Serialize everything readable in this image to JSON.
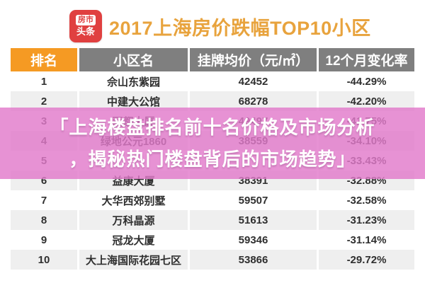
{
  "header": {
    "logo": {
      "line1": "房市",
      "line2": "头条"
    },
    "title": "2017上海房价跌幅TOP10小区"
  },
  "chart_data": {
    "type": "table",
    "title": "2017上海房价跌幅TOP10小区",
    "columns": [
      "排名",
      "小区名",
      "挂牌均价（元/㎡）",
      "12个月变化率"
    ],
    "rows": [
      {
        "rank": "1",
        "name": "佘山东紫园",
        "price": "42452",
        "change": "-44.29%"
      },
      {
        "rank": "2",
        "name": "中建大公馆",
        "price": "68278",
        "change": "-42.20%"
      },
      {
        "rank": "3",
        "name": "丽都大厦",
        "price": "49497",
        "change": "-41.75%"
      },
      {
        "rank": "4",
        "name": "绿地公元1860",
        "price": "38559",
        "change": "-34.10%"
      },
      {
        "rank": "5",
        "name": "",
        "price": "",
        "change": "-33.43%"
      },
      {
        "rank": "6",
        "name": "益康大厦",
        "price": "38391",
        "change": "-32.88%"
      },
      {
        "rank": "7",
        "name": "大华西郊别墅",
        "price": "59507",
        "change": "-32.58%"
      },
      {
        "rank": "8",
        "name": "万科晶源",
        "price": "51613",
        "change": "-31.23%"
      },
      {
        "rank": "9",
        "name": "冠龙大厦",
        "price": "59346",
        "change": "-31.14%"
      },
      {
        "rank": "10",
        "name": "大上海国际花园七区",
        "price": "53866",
        "change": "-29.72%"
      }
    ]
  },
  "overlay": {
    "line1": "「上海楼盘排名前十名价格及市场分析",
    "line2": "，揭秘热门楼盘背后的市场趋势」"
  },
  "colors": {
    "accent_orange": "#F59A23",
    "header_gray": "#7F7F7F",
    "title_orange": "#E8A33D",
    "logo_red": "#E04040",
    "stripe_gray": "#EFEFEF",
    "overlay_pink": "rgba(226,122,203,0.82)",
    "cell_text": "#2F2F2F"
  }
}
